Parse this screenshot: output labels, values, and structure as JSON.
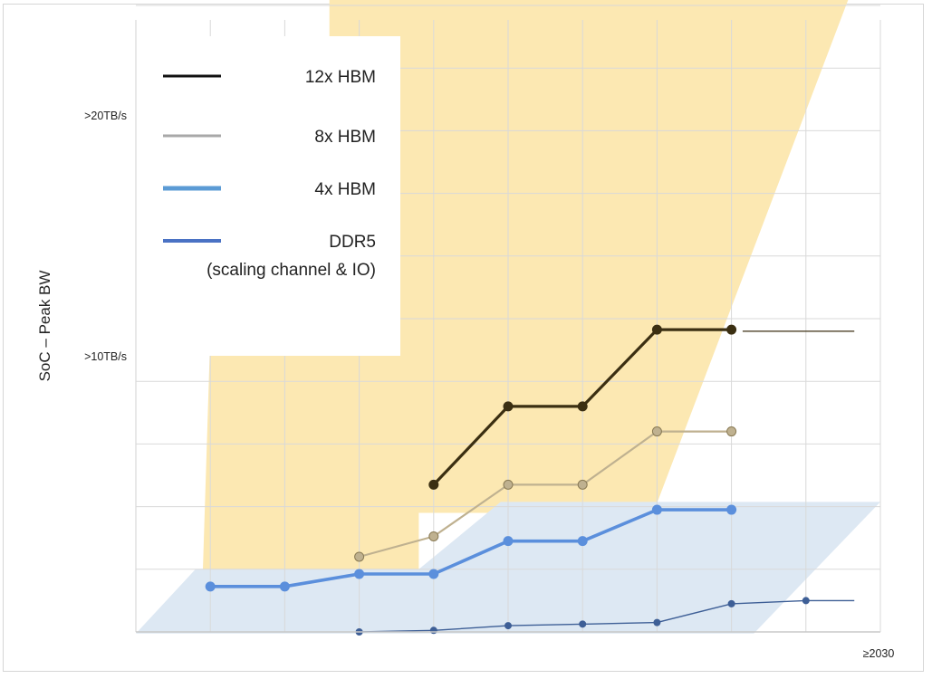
{
  "chart_data": {
    "type": "line",
    "ylabel": "SoC – Peak BW",
    "y_ticks": [
      {
        "label": ">10TB/s",
        "value": 10
      },
      {
        "label": ">20TB/s",
        "value": 20
      }
    ],
    "x_ticks": [
      {
        "label": "≥2030",
        "index": 10
      }
    ],
    "x_slots": 10,
    "ylim": [
      0,
      23.5
    ],
    "grid": true,
    "legend_position": "top-left",
    "bands": [
      {
        "series_ref": "12x HBM",
        "color": "#fce8b2",
        "polygon": [
          [
            0.9,
            2
          ],
          [
            1.1,
            17
          ],
          [
            2.6,
            17
          ],
          [
            2.6,
            23.2
          ],
          [
            10.05,
            23.2
          ],
          [
            6.95,
            3.8
          ],
          [
            3.8,
            3.8
          ],
          [
            3.8,
            2
          ]
        ]
      },
      {
        "series_ref": "4x HBM",
        "color": "#dde8f3",
        "polygon": [
          [
            0,
            -0.05
          ],
          [
            0.8,
            2
          ],
          [
            3.8,
            2
          ],
          [
            4.9,
            4.15
          ],
          [
            10,
            4.15
          ],
          [
            8.3,
            -0.05
          ]
        ]
      }
    ],
    "series": [
      {
        "name": "12x HBM",
        "color": "#3b2f12",
        "width": 3.2,
        "marker": "filled",
        "x": [
          4,
          5,
          6,
          7,
          8
        ],
        "y": [
          4.7,
          7.2,
          7.2,
          9.65,
          9.65
        ],
        "tail": {
          "from_x": 8.15,
          "to_x": 9.65,
          "y": 9.6,
          "width": 1.2
        }
      },
      {
        "name": "8x HBM",
        "color": "#bfb190",
        "width": 2.2,
        "marker": "filled",
        "x": [
          3,
          4,
          5,
          6,
          7,
          8
        ],
        "y": [
          2.4,
          3.05,
          4.7,
          4.7,
          6.4,
          6.4
        ]
      },
      {
        "name": "4x HBM",
        "color": "#5b8fdc",
        "width": 3.6,
        "marker": "filled",
        "x": [
          1,
          2,
          3,
          4,
          5,
          6,
          7,
          8
        ],
        "y": [
          1.45,
          1.45,
          1.85,
          1.85,
          2.9,
          2.9,
          3.9,
          3.9
        ]
      },
      {
        "name": "DDR5\n(scaling channel & IO)",
        "color": "#3e5f96",
        "width": 1.4,
        "marker": "filled-small",
        "x": [
          3,
          4,
          5,
          6,
          7,
          8,
          9
        ],
        "y": [
          0.0,
          0.05,
          0.2,
          0.25,
          0.3,
          0.9,
          1.0
        ],
        "tail": {
          "from_x": 9,
          "to_x": 9.65,
          "y": 1.0,
          "width": 1.4
        }
      }
    ],
    "legend": [
      {
        "label": "12x HBM",
        "color": "#111111",
        "width": 3
      },
      {
        "label": "8x HBM",
        "color": "#a8a8a8",
        "width": 3
      },
      {
        "label": "4x HBM",
        "color": "#5b9bd5",
        "width": 5
      },
      {
        "label": "DDR5",
        "sublabel": "(scaling channel & IO)",
        "color": "#4a72c4",
        "width": 4
      }
    ]
  }
}
